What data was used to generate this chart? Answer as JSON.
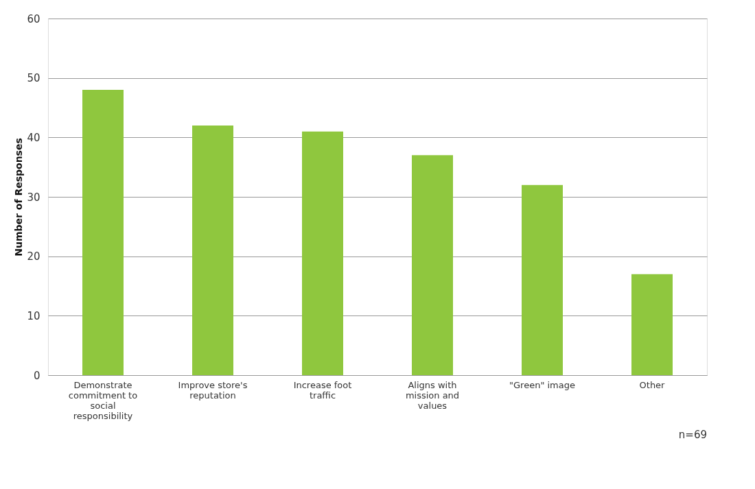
{
  "chart_data": {
    "type": "bar",
    "ylabel": "Number of Responses",
    "categories": [
      "Demonstrate commitment to social responsibility",
      "Improve store's reputation",
      "Increase foot traffic",
      "Aligns with mission and values",
      "\"Green\" image",
      "Other"
    ],
    "values": [
      48,
      42,
      41,
      37,
      32,
      17
    ],
    "color": "#8fc73e",
    "ylim": [
      0,
      60
    ],
    "yticks": [
      0,
      10,
      20,
      30,
      40,
      50,
      60
    ],
    "grid": "y",
    "annotations": [
      "n=69"
    ]
  }
}
